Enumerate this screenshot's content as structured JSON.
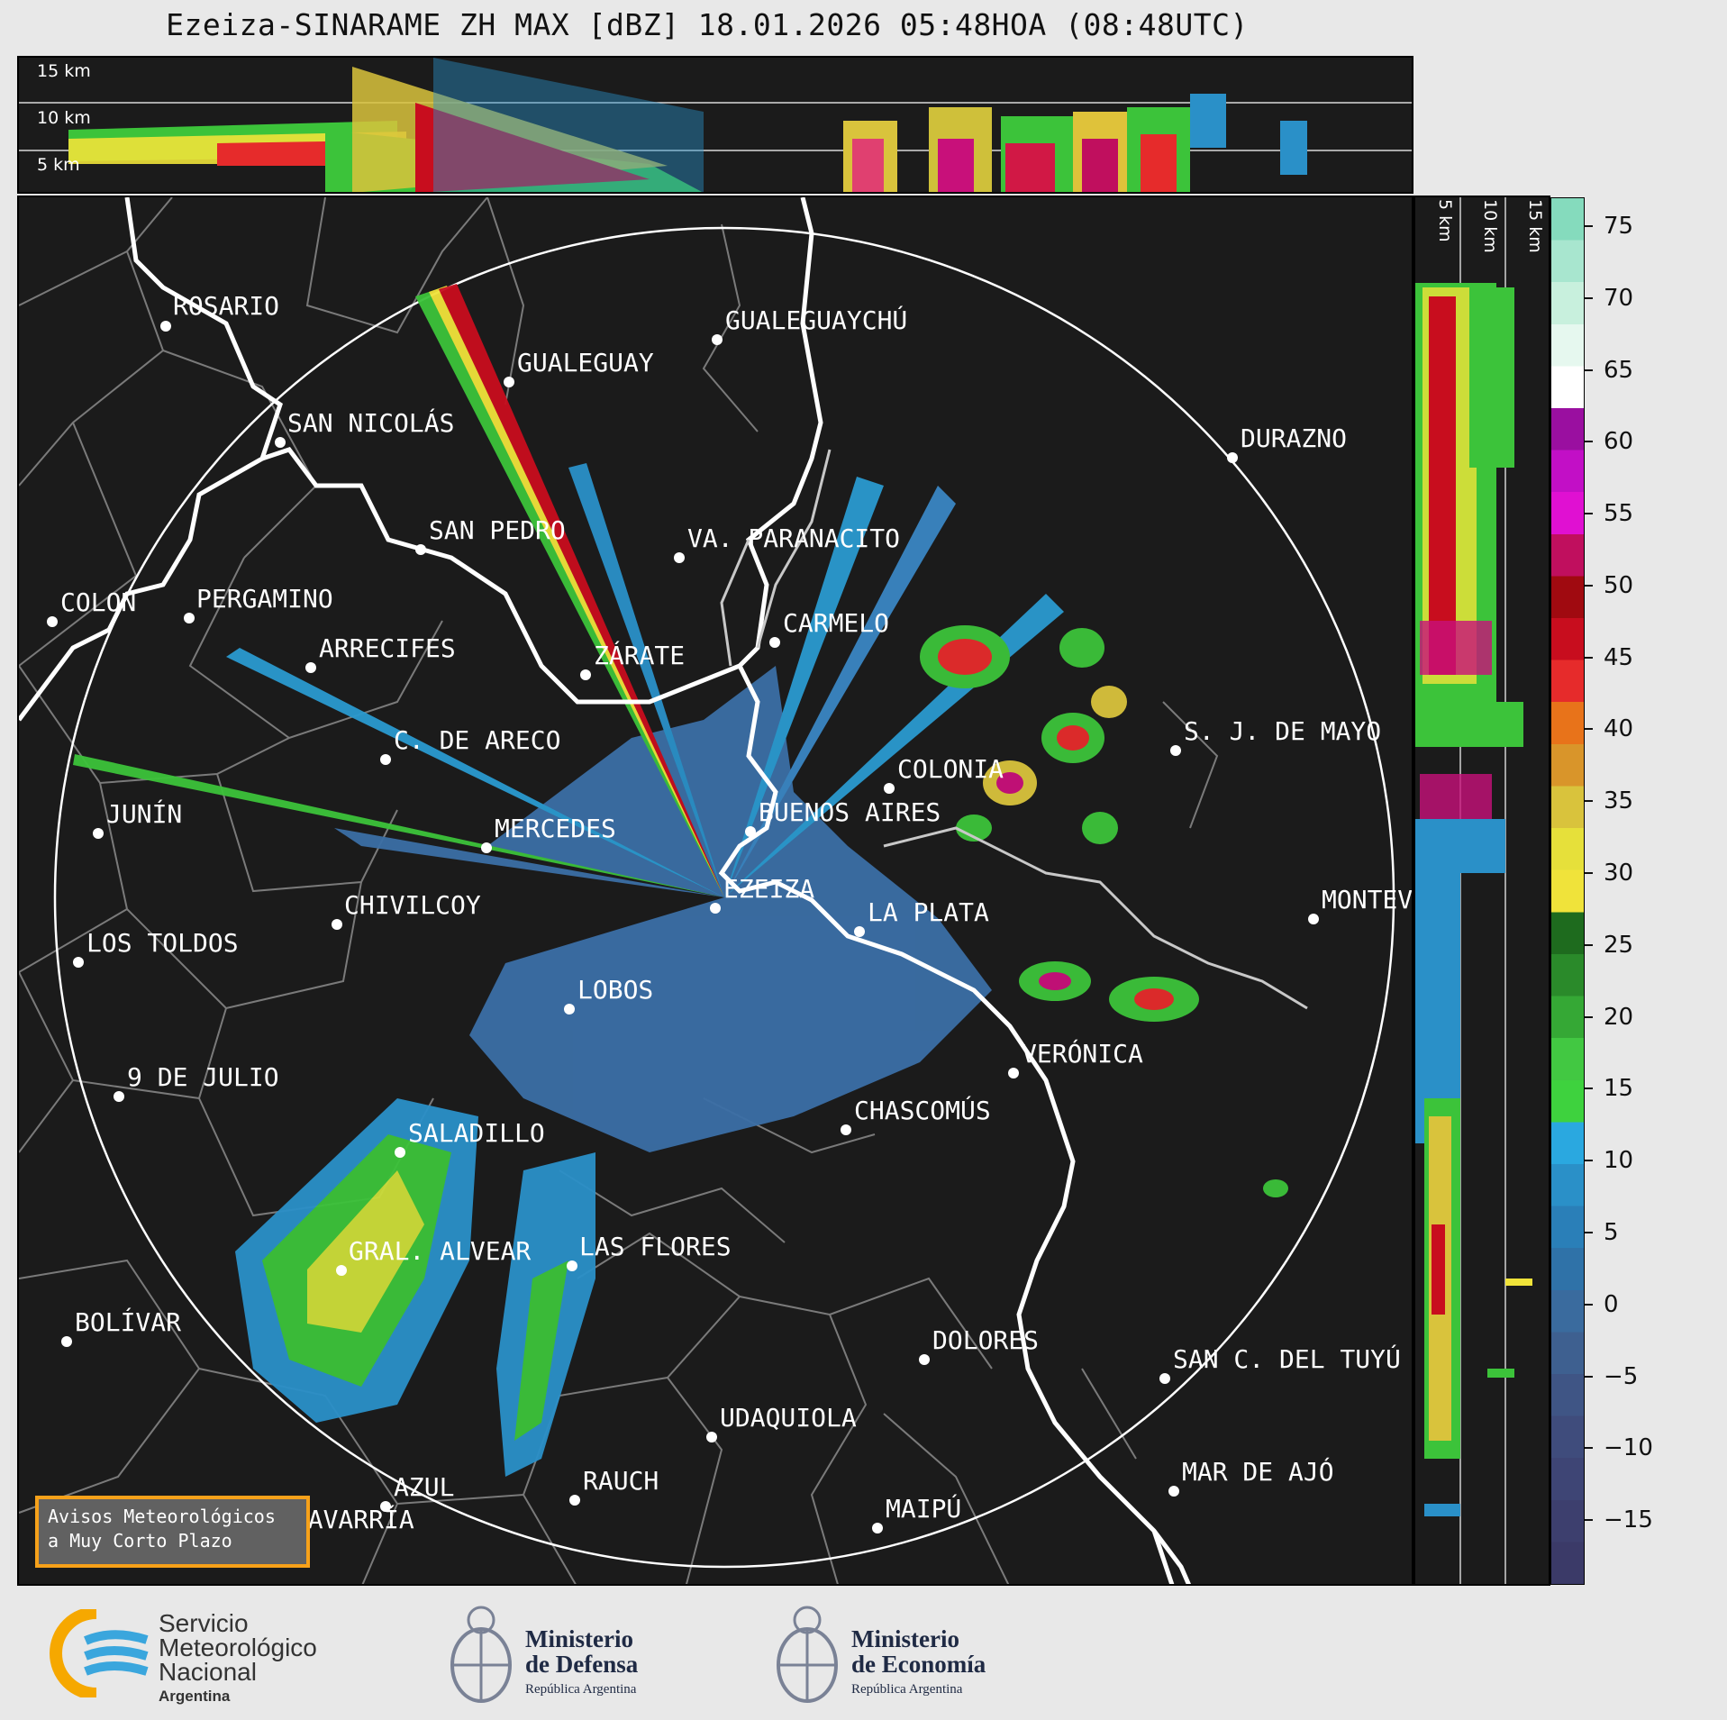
{
  "title": "Ezeiza-SINARAME ZH MAX [dBZ] 18.01.2026 05:48HOA (08:48UTC)",
  "height_labels_top": [
    "15 km",
    "10 km",
    "5 km"
  ],
  "height_labels_side": [
    "5 km",
    "10 km",
    "15 km"
  ],
  "colorbar_ticks": [
    "75",
    "70",
    "65",
    "60",
    "55",
    "50",
    "45",
    "40",
    "35",
    "30",
    "25",
    "20",
    "15",
    "10",
    "5",
    "0",
    "−5",
    "−10",
    "−15"
  ],
  "colorbar_unit": "dBZ",
  "cities": [
    {
      "name": "ROSARIO"
    },
    {
      "name": "GUALEGUAYCHÚ"
    },
    {
      "name": "GUALEGUAY"
    },
    {
      "name": "SAN NICOLÁS"
    },
    {
      "name": "DURAZNO"
    },
    {
      "name": "SAN PEDRO"
    },
    {
      "name": "VA. PARANACITO"
    },
    {
      "name": "COLON"
    },
    {
      "name": "PERGAMINO"
    },
    {
      "name": "CARMELO"
    },
    {
      "name": "ARRECIFES"
    },
    {
      "name": "ZÁRATE"
    },
    {
      "name": "C. DE ARECO"
    },
    {
      "name": "S. J. DE MAYO"
    },
    {
      "name": "COLONIA"
    },
    {
      "name": "JUNÍN"
    },
    {
      "name": "BUENOS AIRES"
    },
    {
      "name": "MERCEDES"
    },
    {
      "name": "EZEIZA"
    },
    {
      "name": "MONTEVIDEO"
    },
    {
      "name": "CHIVILCOY"
    },
    {
      "name": "LA PLATA"
    },
    {
      "name": "LOS TOLDOS"
    },
    {
      "name": "LOBOS"
    },
    {
      "name": "VERÓNICA"
    },
    {
      "name": "9 DE JULIO"
    },
    {
      "name": "CHASCOMÚS"
    },
    {
      "name": "SALADILLO"
    },
    {
      "name": "GRAL. ALVEAR"
    },
    {
      "name": "LAS FLORES"
    },
    {
      "name": "BOLÍVAR"
    },
    {
      "name": "DOLORES"
    },
    {
      "name": "SAN C. DEL TUYÚ"
    },
    {
      "name": "UDAQUIOLA"
    },
    {
      "name": "AZUL"
    },
    {
      "name": "MAR DE AJÓ"
    },
    {
      "name": "RAUCH"
    },
    {
      "name": "OLAVARRÍA"
    },
    {
      "name": "MAIPÚ"
    }
  ],
  "warning_box": {
    "line1": "Avisos Meteorológicos",
    "line2": "a Muy Corto Plazo"
  },
  "logos": {
    "smn": {
      "line1": "Servicio",
      "line2": "Meteorológico",
      "line3": "Nacional",
      "line4": "Argentina"
    },
    "defensa": {
      "line1": "Ministerio",
      "line2": "de Defensa",
      "line3": "República Argentina"
    },
    "economia": {
      "line1": "Ministerio",
      "line2": "de Economía",
      "line3": "República Argentina"
    }
  },
  "colors": {
    "background": "#1b1b1b",
    "page": "#e8e8e8",
    "coast": "#ffffff",
    "boundaries": "#8a8a8a",
    "warning_border": "#f6a11a",
    "smn_orange": "#f6a800",
    "smn_blue": "#3aa6dd"
  }
}
